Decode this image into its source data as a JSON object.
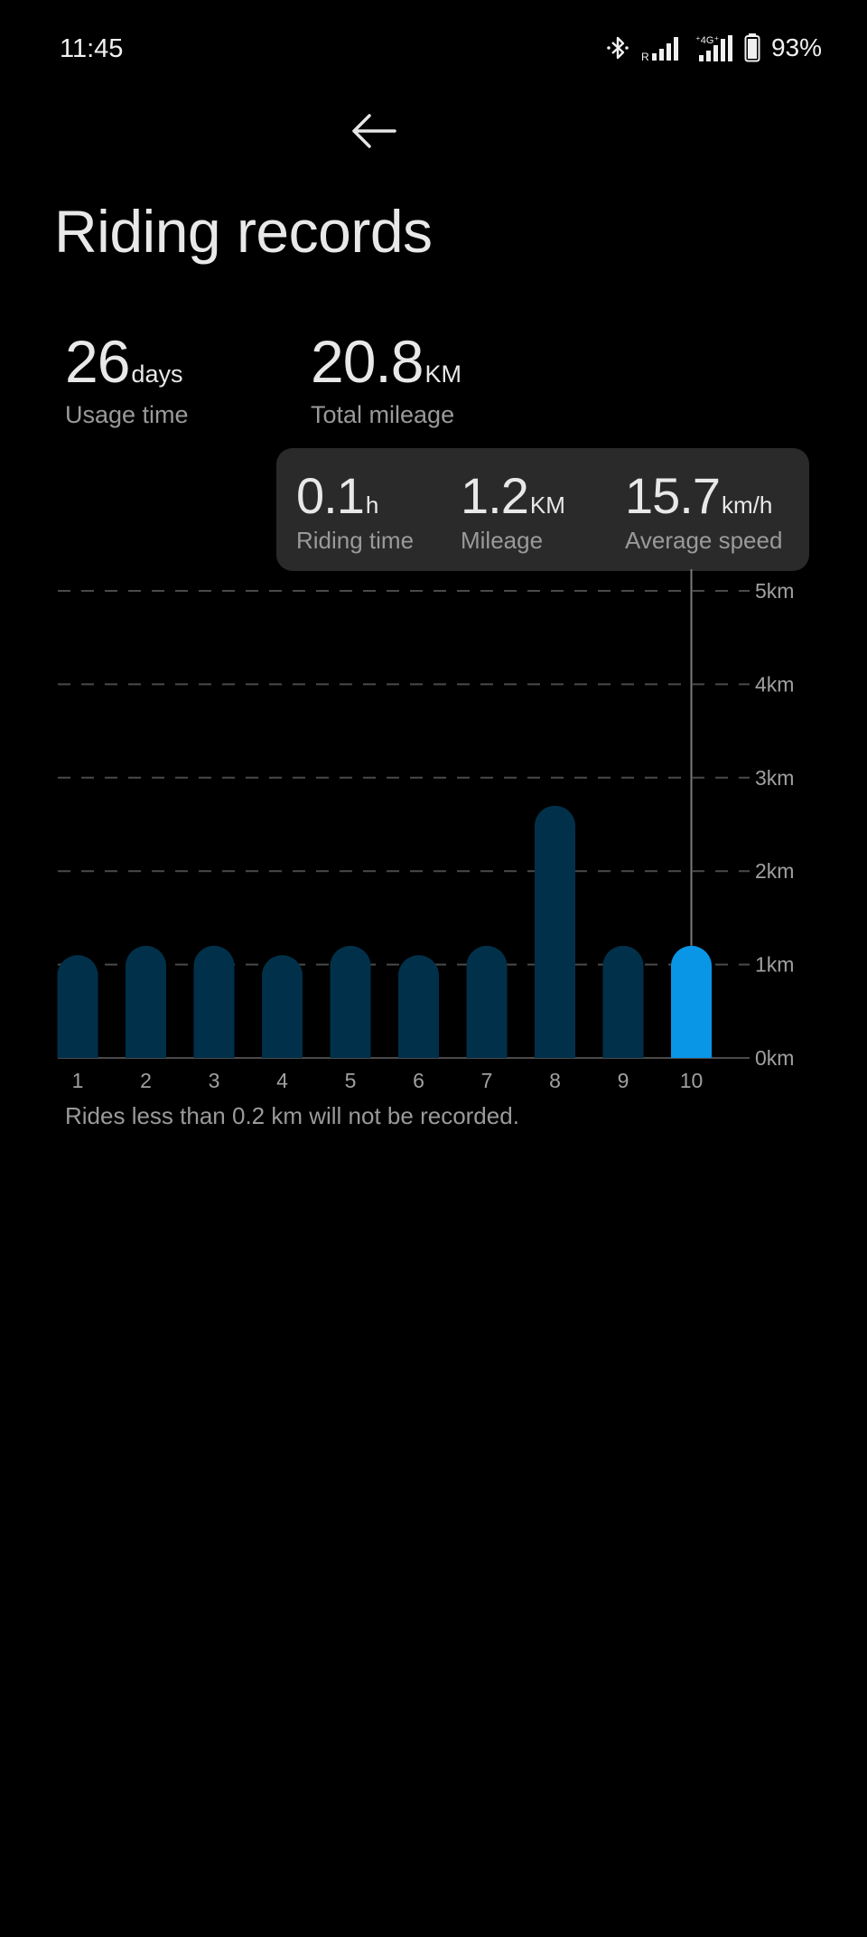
{
  "status_bar": {
    "time": "11:45",
    "battery": "93%",
    "icons": [
      "bluetooth-icon",
      "signal-r-icon",
      "signal-4g-icon",
      "battery-icon"
    ]
  },
  "header": {
    "back_icon": "arrow-left-icon",
    "title": "Riding records"
  },
  "summary": {
    "usage_time": {
      "value": "26",
      "unit": "days",
      "label": "Usage time"
    },
    "total_mileage": {
      "value": "20.8",
      "unit": "KM",
      "label": "Total mileage"
    }
  },
  "tooltip": {
    "riding_time": {
      "value": "0.1",
      "unit": "h",
      "label": "Riding time"
    },
    "mileage": {
      "value": "1.2",
      "unit": "KM",
      "label": "Mileage"
    },
    "average_speed": {
      "value": "15.7",
      "unit": "km/h",
      "label": "Average speed"
    }
  },
  "chart_data": {
    "type": "bar",
    "categories": [
      "1",
      "2",
      "3",
      "4",
      "5",
      "6",
      "7",
      "8",
      "9",
      "10"
    ],
    "values": [
      1.1,
      1.2,
      1.2,
      1.1,
      1.2,
      1.1,
      1.2,
      2.7,
      1.2,
      1.2
    ],
    "y_ticks": [
      "0km",
      "1km",
      "2km",
      "3km",
      "4km",
      "5km"
    ],
    "ylim": [
      0,
      5
    ],
    "selected_index": 9,
    "grid": true,
    "colors": {
      "bar": "#01314a",
      "selected_bar": "#0a96e6",
      "grid": "#4a4a4a"
    }
  },
  "footnote": "Rides less than 0.2 km will not be recorded."
}
